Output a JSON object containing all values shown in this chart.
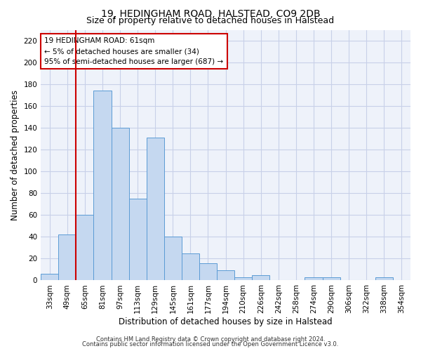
{
  "title": "19, HEDINGHAM ROAD, HALSTEAD, CO9 2DB",
  "subtitle": "Size of property relative to detached houses in Halstead",
  "xlabel": "Distribution of detached houses by size in Halstead",
  "ylabel": "Number of detached properties",
  "footer_line1": "Contains HM Land Registry data © Crown copyright and database right 2024.",
  "footer_line2": "Contains public sector information licensed under the Open Government Licence v3.0.",
  "annotation_title": "19 HEDINGHAM ROAD: 61sqm",
  "annotation_line1": "← 5% of detached houses are smaller (34)",
  "annotation_line2": "95% of semi-detached houses are larger (687) →",
  "bar_labels": [
    "33sqm",
    "49sqm",
    "65sqm",
    "81sqm",
    "97sqm",
    "113sqm",
    "129sqm",
    "145sqm",
    "161sqm",
    "177sqm",
    "194sqm",
    "210sqm",
    "226sqm",
    "242sqm",
    "258sqm",
    "274sqm",
    "290sqm",
    "306sqm",
    "322sqm",
    "338sqm",
    "354sqm"
  ],
  "bar_values": [
    6,
    42,
    60,
    174,
    140,
    75,
    131,
    40,
    25,
    16,
    9,
    3,
    5,
    0,
    0,
    3,
    3,
    0,
    0,
    3,
    0
  ],
  "bar_color": "#c5d8f0",
  "bar_edge_color": "#5b9bd5",
  "vline_x_index": 1.5,
  "vline_color": "#cc0000",
  "annotation_box_color": "#cc0000",
  "ylim": [
    0,
    230
  ],
  "yticks": [
    0,
    20,
    40,
    60,
    80,
    100,
    120,
    140,
    160,
    180,
    200,
    220
  ],
  "bg_color": "#eef2fa",
  "grid_color": "#c8d0e8",
  "title_fontsize": 10,
  "subtitle_fontsize": 9,
  "axis_label_fontsize": 8.5,
  "tick_fontsize": 7.5,
  "annotation_fontsize": 7.5,
  "footer_fontsize": 6.0
}
